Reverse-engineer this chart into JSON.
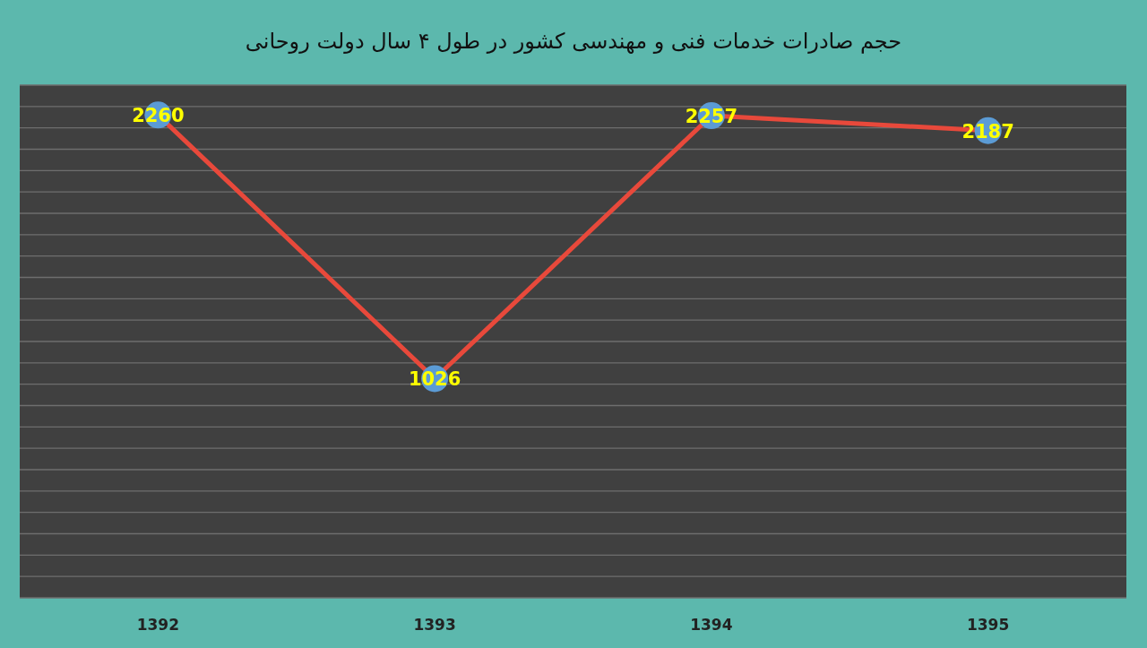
{
  "chart_data": {
    "type": "line",
    "title": "حجم صادرات خدمات فنی و مهندسی کشور در طول ۴ سال دولت روحانی",
    "categories": [
      "1392",
      "1393",
      "1394",
      "1395"
    ],
    "series": [
      {
        "color": "#e8493b",
        "values": [
          2260,
          1026,
          2257,
          2187
        ]
      }
    ],
    "ylim": [
      0,
      2400
    ],
    "yticks": [
      {
        "value": 0,
        "label": null
      },
      {
        "value": 100,
        "label": null
      },
      {
        "value": 200,
        "label": null
      },
      {
        "value": 300,
        "label": null
      },
      {
        "value": 400,
        "label": null
      },
      {
        "value": 500,
        "label": null
      },
      {
        "value": 600,
        "label": null
      },
      {
        "value": 700,
        "label": null
      },
      {
        "value": 800,
        "label": null
      },
      {
        "value": 900,
        "label": null
      },
      {
        "value": 1000,
        "label": null
      },
      {
        "value": 1100,
        "label": null
      },
      {
        "value": 1200,
        "label": null
      },
      {
        "value": 1300,
        "label": null
      },
      {
        "value": 1400,
        "label": null
      },
      {
        "value": 1500,
        "label": null
      },
      {
        "value": 1600,
        "label": null
      },
      {
        "value": 1700,
        "label": null
      },
      {
        "value": 1800,
        "label": null
      },
      {
        "value": 1900,
        "label": null
      },
      {
        "value": 2000,
        "label": null
      },
      {
        "value": 2100,
        "label": null
      },
      {
        "value": 2200,
        "label": null
      },
      {
        "value": 2300,
        "label": null
      },
      {
        "value": 2400,
        "label": null
      }
    ],
    "tick_labels": "x",
    "grid": "y",
    "marker": "circle",
    "data_labels": true
  }
}
